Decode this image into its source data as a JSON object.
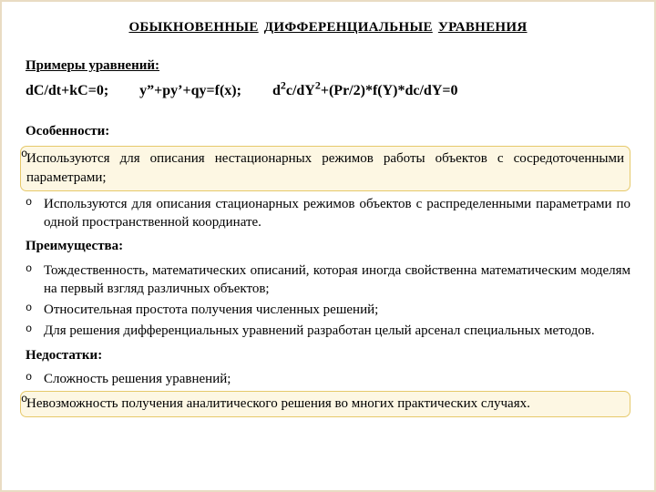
{
  "title_words": [
    "ОБЫКНОВЕННЫЕ",
    "ДИФФЕРЕНЦИАЛЬНЫЕ",
    "УРАВНЕНИЯ"
  ],
  "examples_label": "Примеры уравнений",
  "equations": {
    "eq1": "dC/dt+kC=0;",
    "eq2": "y”+py’+qy=f(x);",
    "eq3_a": "d",
    "eq3_b": "c/dY",
    "eq3_c": "+(Pr/2)*f(Y)*dc/dY=0"
  },
  "features_label": "Особенности",
  "features": [
    "Используются для описания нестационарных режимов работы объектов с сосредоточенными параметрами;",
    "Используются для описания стационарных режимов объектов с распределенными параметрами по одной пространственной координате."
  ],
  "advantages_label": "Преимущества",
  "advantages": [
    "Тождественность, математических описаний, которая иногда свойственна математическим моделям на первый взгляд различных объектов;",
    "Относительная простота получения численных решений;",
    "Для решения дифференциальных уравнений разработан целый арсенал специальных методов."
  ],
  "disadvantages_label": "Недостатки",
  "disadvantages": [
    "Сложность решения уравнений;",
    "Невозможность получения аналитического решения во многих практических случаях."
  ],
  "colors": {
    "frame": "#e9dcc3",
    "highlight_bg": "#fdf7e3",
    "highlight_border": "#e6c96b",
    "text": "#000000",
    "background": "#ffffff"
  },
  "typography": {
    "font_family": "Times New Roman",
    "base_size_pt": 15,
    "title_weight": "bold",
    "equation_weight": "bold"
  }
}
